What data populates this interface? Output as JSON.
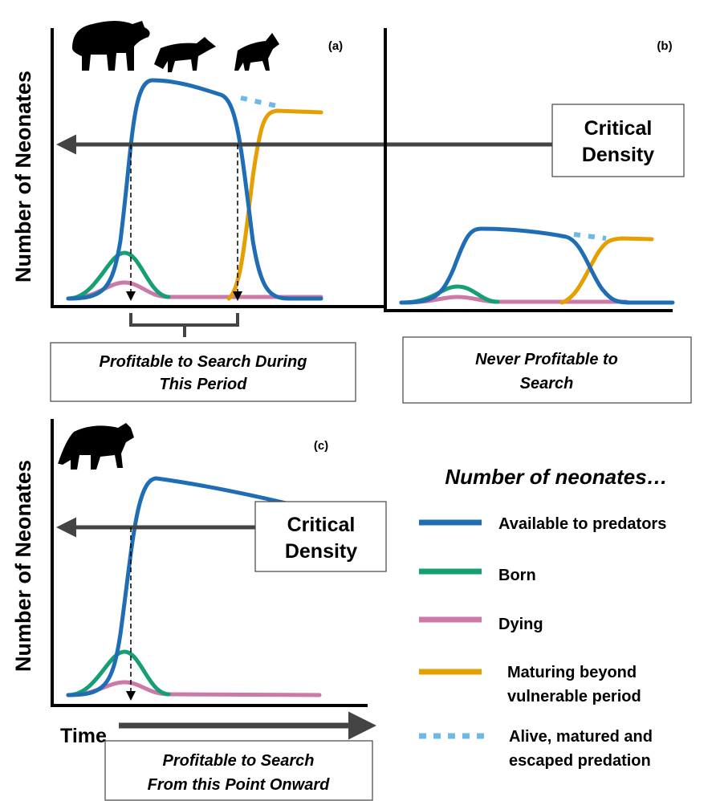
{
  "panels": [
    {
      "label": "(a)",
      "y_axis_label": "Number of Neonates",
      "critical_density": [
        "Critical",
        "Density"
      ],
      "note": [
        "Profitable to Search During",
        "This Period"
      ]
    },
    {
      "label": "(b)",
      "note": [
        "Never Profitable to",
        "Search"
      ]
    },
    {
      "label": "(c)",
      "y_axis_label": "Number of Neonates",
      "critical_density": [
        "Critical",
        "Density"
      ],
      "x_axis_label": "Time",
      "note": [
        "Profitable to Search",
        "From this Point Onward"
      ]
    }
  ],
  "legend": {
    "title": "Number of neonates…",
    "items": [
      {
        "label": [
          "Available to predators"
        ]
      },
      {
        "label": [
          "Born"
        ]
      },
      {
        "label": [
          "Dying"
        ]
      },
      {
        "label": [
          "Maturing beyond",
          "vulnerable period"
        ]
      },
      {
        "label": [
          "Alive, matured and",
          "escaped predation"
        ]
      }
    ]
  }
}
